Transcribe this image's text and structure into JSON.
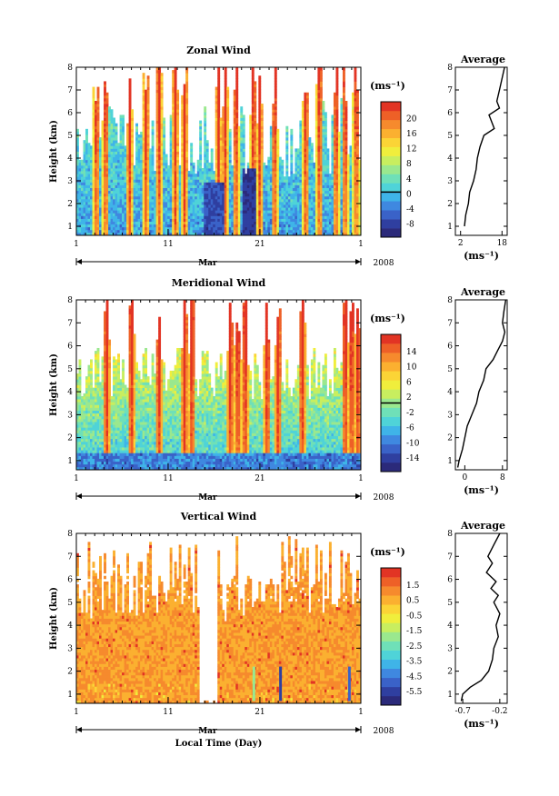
{
  "chart_data": [
    {
      "type": "heatmap",
      "title": "Zonal Wind",
      "ylabel": "Height (km)",
      "ylim": [
        0.6,
        8
      ],
      "yticks": [
        "1",
        "2",
        "3",
        "4",
        "5",
        "6",
        "7",
        "8"
      ],
      "xticks": [
        "1",
        "11",
        "21",
        "1"
      ],
      "xlim": [
        1,
        32
      ],
      "month_label": "Mar",
      "year_label": "2008",
      "colorbar": {
        "unit": "(ms⁻¹)",
        "levels": [
          "20",
          "16",
          "12",
          "8",
          "4",
          "0",
          "-4",
          "-8"
        ],
        "range": [
          -10,
          22
        ],
        "colors": [
          "#2b2a7a",
          "#2f3fa0",
          "#3a62c8",
          "#3f88e0",
          "#3fb4e8",
          "#4fd3d8",
          "#6fe0b8",
          "#9ae88e",
          "#c8ee5f",
          "#f0ee3c",
          "#fbd436",
          "#fbb030",
          "#f68a2d",
          "#ee6027",
          "#e23424"
        ]
      },
      "average_panel": {
        "title": "Average",
        "xticks": [
          "2",
          "18"
        ],
        "xlim": [
          0,
          20
        ],
        "xlabel": "(ms⁻¹)",
        "profile": [
          [
            1,
            3.5
          ],
          [
            1.5,
            4
          ],
          [
            2,
            5
          ],
          [
            2.5,
            5.5
          ],
          [
            3,
            7
          ],
          [
            3.5,
            8
          ],
          [
            4,
            8.5
          ],
          [
            4.5,
            9.5
          ],
          [
            5,
            11
          ],
          [
            5.3,
            15
          ],
          [
            5.6,
            14
          ],
          [
            5.9,
            13
          ],
          [
            6.2,
            17
          ],
          [
            6.5,
            16
          ],
          [
            7,
            17
          ],
          [
            7.5,
            18
          ],
          [
            8,
            19
          ]
        ]
      }
    },
    {
      "type": "heatmap",
      "title": "Meridional Wind",
      "ylabel": "Height (km)",
      "ylim": [
        0.6,
        8
      ],
      "yticks": [
        "1",
        "2",
        "3",
        "4",
        "5",
        "6",
        "7",
        "8"
      ],
      "xticks": [
        "1",
        "11",
        "21",
        "1"
      ],
      "xlim": [
        1,
        32
      ],
      "month_label": "Mar",
      "year_label": "2008",
      "colorbar": {
        "unit": "(ms⁻¹)",
        "levels": [
          "14",
          "10",
          "6",
          "2",
          "-2",
          "-6",
          "-10",
          "-14"
        ],
        "range": [
          -16,
          16
        ],
        "colors": [
          "#2b2a7a",
          "#2f3fa0",
          "#3a62c8",
          "#3f88e0",
          "#3fb4e8",
          "#4fd3d8",
          "#6fe0b8",
          "#9ae88e",
          "#c8ee5f",
          "#f0ee3c",
          "#fbd436",
          "#fbb030",
          "#f68a2d",
          "#ee6027",
          "#e23424"
        ]
      },
      "average_panel": {
        "title": "Average",
        "xticks": [
          "0",
          "8"
        ],
        "xlim": [
          -2,
          9
        ],
        "xlabel": "(ms⁻¹)",
        "profile": [
          [
            0.7,
            -1.5
          ],
          [
            1,
            -1.2
          ],
          [
            1.5,
            -0.5
          ],
          [
            2,
            0
          ],
          [
            2.5,
            0.5
          ],
          [
            3,
            1.5
          ],
          [
            3.5,
            2.5
          ],
          [
            4,
            3
          ],
          [
            4.5,
            4
          ],
          [
            5,
            4.5
          ],
          [
            5.4,
            6
          ],
          [
            5.8,
            7
          ],
          [
            6.2,
            8
          ],
          [
            6.6,
            8.5
          ],
          [
            7,
            8
          ],
          [
            7.5,
            8.3
          ],
          [
            8,
            8.7
          ]
        ]
      }
    },
    {
      "type": "heatmap",
      "title": "Vertical Wind",
      "xlabel": "Local Time (Day)",
      "ylabel": "Height (km)",
      "ylim": [
        0.6,
        8
      ],
      "yticks": [
        "1",
        "2",
        "3",
        "4",
        "5",
        "6",
        "7",
        "8"
      ],
      "xticks": [
        "1",
        "11",
        "21",
        "1"
      ],
      "xlim": [
        1,
        32
      ],
      "month_label": "Mar",
      "year_label": "2008",
      "colorbar": {
        "unit": "(ms⁻¹)",
        "levels": [
          "1.5",
          "0.5",
          "-0.5",
          "-1.5",
          "-2.5",
          "-3.5",
          "-4.5",
          "-5.5"
        ],
        "range": [
          -6.5,
          2
        ],
        "colors": [
          "#2b2a7a",
          "#2f3fa0",
          "#3a62c8",
          "#3f88e0",
          "#3fb4e8",
          "#4fd3d8",
          "#6fe0b8",
          "#9ae88e",
          "#c8ee5f",
          "#f0ee3c",
          "#fbd436",
          "#fbb030",
          "#f68a2d",
          "#ee6027",
          "#e23424"
        ]
      },
      "average_panel": {
        "title": "Average",
        "xticks": [
          "-0.7",
          "-0.2"
        ],
        "xlim": [
          -0.8,
          -0.1
        ],
        "xlabel": "(ms⁻¹)",
        "profile": [
          [
            0.7,
            -0.72
          ],
          [
            1,
            -0.7
          ],
          [
            1.3,
            -0.6
          ],
          [
            1.6,
            -0.45
          ],
          [
            2,
            -0.35
          ],
          [
            2.5,
            -0.3
          ],
          [
            3,
            -0.28
          ],
          [
            3.5,
            -0.22
          ],
          [
            4,
            -0.25
          ],
          [
            4.5,
            -0.2
          ],
          [
            5,
            -0.28
          ],
          [
            5.3,
            -0.22
          ],
          [
            5.6,
            -0.32
          ],
          [
            5.9,
            -0.25
          ],
          [
            6.3,
            -0.38
          ],
          [
            6.7,
            -0.3
          ],
          [
            7,
            -0.36
          ],
          [
            7.5,
            -0.28
          ],
          [
            8,
            -0.2
          ]
        ]
      }
    }
  ]
}
